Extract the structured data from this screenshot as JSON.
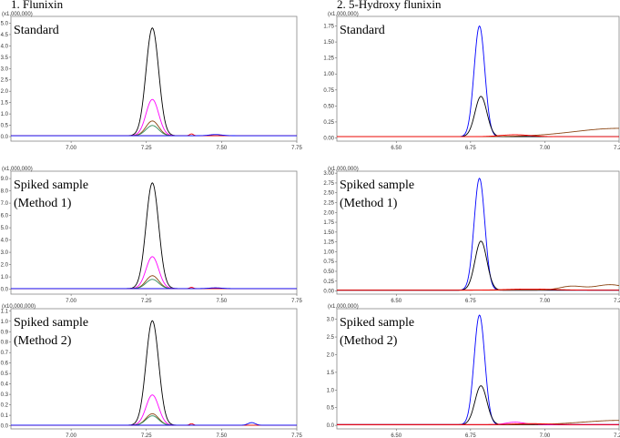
{
  "titles": {
    "left": "1. Flunixin",
    "right": "2. 5-Hydroxy flunixin"
  },
  "colors": {
    "black": "#000000",
    "magenta": "#ff00ff",
    "brown": "#8b4513",
    "green": "#2e8b57",
    "blue": "#0000ff",
    "red": "#ff0000"
  },
  "chart_data": [
    {
      "type": "line",
      "multiplier": "(x1,000,000)",
      "label": [
        "Standard"
      ],
      "xlim": [
        6.8,
        7.75
      ],
      "xticks": [
        "7.00",
        "7.25",
        "7.50",
        "7.75"
      ],
      "ylim": [
        -0.2,
        5.3
      ],
      "yticks": [
        "0.0",
        "0.5",
        "1.0",
        "1.5",
        "2.0",
        "2.5",
        "3.0",
        "3.5",
        "4.0",
        "4.5",
        "5.0"
      ],
      "baseline": 0.04,
      "series": [
        {
          "color": "black",
          "peaks": [
            {
              "c": 7.27,
              "h": 4.75,
              "w": 0.021
            }
          ]
        },
        {
          "color": "magenta",
          "peaks": [
            {
              "c": 7.27,
              "h": 1.6,
              "w": 0.021
            }
          ]
        },
        {
          "color": "brown",
          "peaks": [
            {
              "c": 7.27,
              "h": 0.65,
              "w": 0.021
            }
          ]
        },
        {
          "color": "green",
          "peaks": [
            {
              "c": 7.27,
              "h": 0.45,
              "w": 0.021
            }
          ]
        },
        {
          "color": "red",
          "peaks": [
            {
              "c": 7.4,
              "h": 0.08,
              "w": 0.006
            }
          ]
        },
        {
          "color": "blue",
          "peaks": [
            {
              "c": 7.48,
              "h": 0.05,
              "w": 0.02
            }
          ]
        }
      ]
    },
    {
      "type": "line",
      "multiplier": "(x1,000,000)",
      "label": [
        "Standard"
      ],
      "xlim": [
        6.3,
        7.25
      ],
      "xticks": [
        "6.50",
        "6.75",
        "7.00",
        "7.25"
      ],
      "ylim": [
        -0.05,
        1.9
      ],
      "yticks": [
        "0.00",
        "0.25",
        "0.50",
        "0.75",
        "1.00",
        "1.25",
        "1.50",
        "1.75"
      ],
      "baseline": 0.02,
      "series": [
        {
          "color": "blue",
          "peaks": [
            {
              "c": 6.78,
              "h": 1.73,
              "w": 0.018
            }
          ]
        },
        {
          "color": "black",
          "peaks": [
            {
              "c": 6.785,
              "h": 0.63,
              "w": 0.02
            }
          ]
        },
        {
          "color": "brown",
          "peaks": [
            {
              "c": 7.25,
              "h": 0.13,
              "w": 0.15
            }
          ]
        },
        {
          "color": "red",
          "peaks": [
            {
              "c": 6.9,
              "h": 0.03,
              "w": 0.05
            }
          ]
        }
      ]
    },
    {
      "type": "line",
      "multiplier": "(x1,000,000)",
      "label": [
        "Spiked sample",
        "(Method 1)"
      ],
      "xlim": [
        6.8,
        7.75
      ],
      "xticks": [
        "7.00",
        "7.25",
        "7.50",
        "7.75"
      ],
      "ylim": [
        -0.4,
        9.6
      ],
      "yticks": [
        "0.0",
        "1.0",
        "2.0",
        "3.0",
        "4.0",
        "5.0",
        "6.0",
        "7.0",
        "8.0",
        "9.0"
      ],
      "baseline": 0.05,
      "series": [
        {
          "color": "black",
          "peaks": [
            {
              "c": 7.27,
              "h": 8.6,
              "w": 0.021
            }
          ]
        },
        {
          "color": "magenta",
          "peaks": [
            {
              "c": 7.27,
              "h": 2.6,
              "w": 0.021
            }
          ]
        },
        {
          "color": "brown",
          "peaks": [
            {
              "c": 7.27,
              "h": 1.05,
              "w": 0.021
            }
          ]
        },
        {
          "color": "green",
          "peaks": [
            {
              "c": 7.27,
              "h": 0.75,
              "w": 0.021
            }
          ]
        },
        {
          "color": "red",
          "peaks": [
            {
              "c": 7.4,
              "h": 0.1,
              "w": 0.006
            }
          ]
        },
        {
          "color": "blue",
          "peaks": [
            {
              "c": 7.48,
              "h": 0.06,
              "w": 0.02
            }
          ]
        }
      ]
    },
    {
      "type": "line",
      "multiplier": "(x1,000,000)",
      "label": [
        "Spiked sample",
        "(Method 1)"
      ],
      "xlim": [
        6.3,
        7.25
      ],
      "xticks": [
        "6.50",
        "6.75",
        "7.00",
        "7.25"
      ],
      "ylim": [
        -0.08,
        3.05
      ],
      "yticks": [
        "0.00",
        "0.25",
        "0.50",
        "0.75",
        "1.00",
        "1.25",
        "1.50",
        "1.75",
        "2.00",
        "2.25",
        "2.50",
        "2.75",
        "3.00"
      ],
      "baseline": 0.02,
      "series": [
        {
          "color": "blue",
          "peaks": [
            {
              "c": 6.78,
              "h": 2.85,
              "w": 0.018
            }
          ]
        },
        {
          "color": "black",
          "peaks": [
            {
              "c": 6.785,
              "h": 1.25,
              "w": 0.02
            }
          ]
        },
        {
          "color": "brown",
          "peaks": [
            {
              "c": 7.09,
              "h": 0.1,
              "w": 0.04
            },
            {
              "c": 7.22,
              "h": 0.14,
              "w": 0.05
            }
          ]
        },
        {
          "color": "red",
          "peaks": [
            {
              "c": 6.95,
              "h": 0.03,
              "w": 0.08
            }
          ]
        }
      ]
    },
    {
      "type": "line",
      "multiplier": "(x10,000,000)",
      "label": [
        "Spiked sample",
        "(Method 2)"
      ],
      "xlim": [
        6.8,
        7.75
      ],
      "xticks": [
        "7.00",
        "7.25",
        "7.50",
        "7.75"
      ],
      "ylim": [
        -0.03,
        1.12
      ],
      "yticks": [
        "0.0",
        "0.1",
        "0.2",
        "0.3",
        "0.4",
        "0.5",
        "0.6",
        "0.7",
        "0.8",
        "0.9",
        "1.0",
        "1.1"
      ],
      "baseline": 0.005,
      "series": [
        {
          "color": "black",
          "peaks": [
            {
              "c": 7.27,
              "h": 1.0,
              "w": 0.021
            }
          ]
        },
        {
          "color": "magenta",
          "peaks": [
            {
              "c": 7.27,
              "h": 0.29,
              "w": 0.021
            }
          ]
        },
        {
          "color": "brown",
          "peaks": [
            {
              "c": 7.27,
              "h": 0.11,
              "w": 0.021
            }
          ]
        },
        {
          "color": "green",
          "peaks": [
            {
              "c": 7.27,
              "h": 0.09,
              "w": 0.021
            }
          ]
        },
        {
          "color": "red",
          "peaks": [
            {
              "c": 7.4,
              "h": 0.015,
              "w": 0.006
            }
          ]
        },
        {
          "color": "blue",
          "peaks": [
            {
              "c": 7.6,
              "h": 0.025,
              "w": 0.012
            }
          ]
        }
      ]
    },
    {
      "type": "line",
      "multiplier": "(x1,000,000)",
      "label": [
        "Spiked sample",
        "(Method 2)"
      ],
      "xlim": [
        6.3,
        7.25
      ],
      "xticks": [
        "6.50",
        "6.75",
        "7.00",
        "7.25"
      ],
      "ylim": [
        -0.1,
        3.3
      ],
      "yticks": [
        "0.0",
        "0.5",
        "1.0",
        "1.5",
        "2.0",
        "2.5",
        "3.0"
      ],
      "baseline": 0.02,
      "series": [
        {
          "color": "blue",
          "peaks": [
            {
              "c": 6.78,
              "h": 3.1,
              "w": 0.018
            }
          ]
        },
        {
          "color": "black",
          "peaks": [
            {
              "c": 6.785,
              "h": 1.1,
              "w": 0.02
            }
          ]
        },
        {
          "color": "magenta",
          "peaks": [
            {
              "c": 6.9,
              "h": 0.07,
              "w": 0.03
            }
          ]
        },
        {
          "color": "brown",
          "peaks": [
            {
              "c": 7.25,
              "h": 0.12,
              "w": 0.12
            }
          ]
        },
        {
          "color": "red",
          "peaks": [
            {
              "c": 6.95,
              "h": 0.03,
              "w": 0.06
            }
          ]
        }
      ]
    }
  ]
}
